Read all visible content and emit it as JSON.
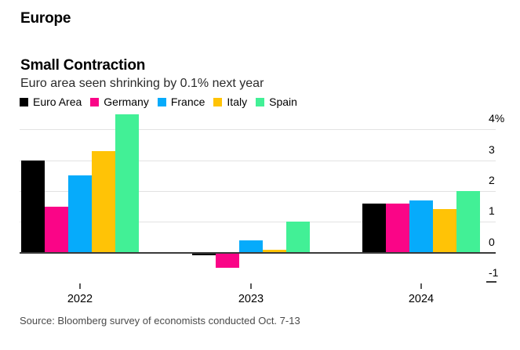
{
  "page": {
    "kicker": "Europe",
    "title": "Small Contraction",
    "subtitle": "Euro area seen shrinking by 0.1% next year",
    "source": "Source: Bloomberg survey of economists conducted Oct. 7-13"
  },
  "colors": {
    "euro_area": "#000000",
    "germany": "#fa0587",
    "france": "#06abfb",
    "italy": "#ffc306",
    "spain": "#42f096",
    "gridline": "#e2e2e2",
    "axis": "#3a3a3a"
  },
  "chart_data": {
    "type": "bar",
    "title": "Small Contraction",
    "subtitle": "Euro area seen shrinking by 0.1% next year",
    "categories": [
      "2022",
      "2023",
      "2024"
    ],
    "series": [
      {
        "name": "Euro Area",
        "color": "#000000",
        "values": [
          3.0,
          -0.1,
          1.6
        ]
      },
      {
        "name": "Germany",
        "color": "#fa0587",
        "values": [
          1.5,
          -0.5,
          1.6
        ]
      },
      {
        "name": "France",
        "color": "#06abfb",
        "values": [
          2.5,
          0.4,
          1.7
        ]
      },
      {
        "name": "Italy",
        "color": "#ffc306",
        "values": [
          3.3,
          0.1,
          1.4
        ]
      },
      {
        "name": "Spain",
        "color": "#42f096",
        "values": [
          4.5,
          1.0,
          2.0
        ]
      }
    ],
    "xlabel": "",
    "ylabel": "",
    "y_ticks": [
      {
        "label": "4%",
        "value": 4
      },
      {
        "label": "3",
        "value": 3
      },
      {
        "label": "2",
        "value": 2
      },
      {
        "label": "1",
        "value": 1
      },
      {
        "label": "0",
        "value": 0
      },
      {
        "label": "-1",
        "value": -1
      }
    ],
    "ylim": [
      -1,
      4
    ],
    "grid": "horizontal",
    "legend_position": "top"
  }
}
